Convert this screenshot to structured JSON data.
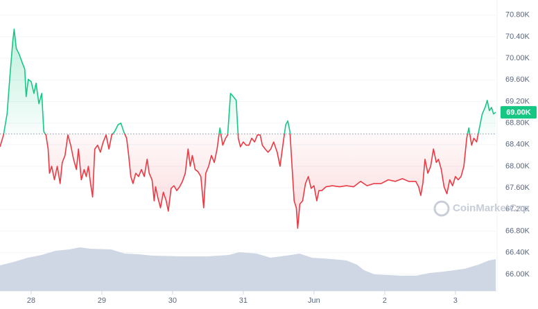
{
  "chart_data": {
    "type": "line",
    "watermark": "CoinMarketCap",
    "x": [
      -0.44,
      -0.39,
      -0.34,
      -0.3,
      -0.26,
      -0.24,
      -0.21,
      -0.17,
      -0.12,
      -0.09,
      -0.07,
      -0.04,
      0.0,
      0.04,
      0.07,
      0.11,
      0.15,
      0.18,
      0.21,
      0.24,
      0.26,
      0.29,
      0.33,
      0.37,
      0.41,
      0.44,
      0.48,
      0.52,
      0.56,
      0.6,
      0.64,
      0.67,
      0.71,
      0.75,
      0.78,
      0.81,
      0.84,
      0.87,
      0.9,
      0.94,
      0.98,
      1.02,
      1.06,
      1.1,
      1.14,
      1.18,
      1.23,
      1.27,
      1.31,
      1.35,
      1.38,
      1.41,
      1.44,
      1.48,
      1.52,
      1.56,
      1.6,
      1.64,
      1.67,
      1.71,
      1.74,
      1.76,
      1.79,
      1.83,
      1.87,
      1.91,
      1.94,
      1.98,
      2.02,
      2.06,
      2.1,
      2.14,
      2.18,
      2.22,
      2.25,
      2.28,
      2.32,
      2.36,
      2.4,
      2.44,
      2.47,
      2.51,
      2.55,
      2.59,
      2.63,
      2.67,
      2.71,
      2.75,
      2.78,
      2.82,
      2.86,
      2.9,
      2.93,
      2.96,
      3.0,
      3.04,
      3.08,
      3.12,
      3.16,
      3.2,
      3.24,
      3.27,
      3.31,
      3.35,
      3.39,
      3.43,
      3.48,
      3.52,
      3.56,
      3.6,
      3.63,
      3.66,
      3.69,
      3.72,
      3.75,
      3.77,
      3.8,
      3.84,
      3.88,
      3.92,
      3.96,
      4.0,
      4.04,
      4.07,
      4.11,
      4.17,
      4.26,
      4.36,
      4.46,
      4.56,
      4.66,
      4.75,
      4.85,
      4.95,
      5.05,
      5.15,
      5.25,
      5.34,
      5.44,
      5.48,
      5.51,
      5.54,
      5.57,
      5.61,
      5.65,
      5.69,
      5.73,
      5.76,
      5.8,
      5.84,
      5.88,
      5.92,
      5.96,
      6.0,
      6.04,
      6.08,
      6.12,
      6.16,
      6.19,
      6.23,
      6.26,
      6.3,
      6.34,
      6.38,
      6.42,
      6.45,
      6.48,
      6.51,
      6.54,
      6.57
    ],
    "values": [
      68360,
      68580,
      68970,
      69670,
      70310,
      70540,
      70180,
      70080,
      69900,
      69800,
      69290,
      69610,
      69570,
      69350,
      69540,
      69160,
      69350,
      68640,
      68580,
      68320,
      67870,
      68000,
      67750,
      68000,
      67680,
      68070,
      68200,
      68580,
      68390,
      68130,
      67940,
      68320,
      67750,
      67940,
      67810,
      68000,
      67680,
      67430,
      68320,
      68390,
      68260,
      68450,
      68580,
      68320,
      68580,
      68640,
      68770,
      68800,
      68640,
      68520,
      68200,
      67810,
      67680,
      67870,
      67810,
      67940,
      67810,
      68130,
      67870,
      67750,
      67360,
      67620,
      67430,
      67230,
      67520,
      67360,
      67170,
      67590,
      67640,
      67550,
      67620,
      67720,
      67870,
      68320,
      68000,
      68200,
      67940,
      67900,
      67810,
      67230,
      67870,
      68000,
      68200,
      68070,
      68320,
      68710,
      68390,
      68520,
      68580,
      69350,
      69290,
      69220,
      68520,
      68360,
      68450,
      68390,
      68390,
      68520,
      68450,
      68580,
      68580,
      68390,
      68320,
      68260,
      68320,
      68450,
      68260,
      68000,
      68390,
      68770,
      68840,
      68640,
      68000,
      67360,
      67230,
      66850,
      67300,
      67360,
      67680,
      67810,
      67590,
      67640,
      67360,
      67550,
      67550,
      67620,
      67640,
      67620,
      67640,
      67620,
      67720,
      67640,
      67680,
      67680,
      67750,
      67720,
      67770,
      67720,
      67720,
      67620,
      67460,
      67680,
      68130,
      67870,
      68000,
      68320,
      68070,
      68130,
      67940,
      67620,
      67490,
      67750,
      67640,
      67810,
      67750,
      67810,
      68000,
      68520,
      68710,
      68390,
      68520,
      68450,
      68710,
      68970,
      69090,
      69220,
      69030,
      69090,
      68970,
      69000
    ],
    "up_color": "#16c784",
    "down_color": "#ea3943",
    "reference_line": 68600,
    "price_label": {
      "value": 69000,
      "label": "69.00K"
    },
    "xlim": [
      -0.44,
      6.57
    ],
    "xticks": [
      {
        "value": 0,
        "label": "28"
      },
      {
        "value": 1,
        "label": "29"
      },
      {
        "value": 2,
        "label": "30"
      },
      {
        "value": 3,
        "label": "31"
      },
      {
        "value": 4,
        "label": "Jun"
      },
      {
        "value": 5,
        "label": "2"
      },
      {
        "value": 6,
        "label": "3"
      }
    ],
    "ylim": [
      65690,
      71080
    ],
    "yticks": [
      {
        "value": 66000,
        "label": "66.00K"
      },
      {
        "value": 66400,
        "label": "66.40K"
      },
      {
        "value": 66800,
        "label": "66.80K"
      },
      {
        "value": 67200,
        "label": "67.20K"
      },
      {
        "value": 67600,
        "label": "67.60K"
      },
      {
        "value": 68000,
        "label": "68.00K"
      },
      {
        "value": 68400,
        "label": "68.40K"
      },
      {
        "value": 68800,
        "label": "68.80K"
      },
      {
        "value": 69200,
        "label": "69.20K"
      },
      {
        "value": 69600,
        "label": "69.60K"
      },
      {
        "value": 70000,
        "label": "70.00K"
      },
      {
        "value": 70400,
        "label": "70.40K"
      },
      {
        "value": 70800,
        "label": "70.80K"
      }
    ],
    "grid": true
  }
}
